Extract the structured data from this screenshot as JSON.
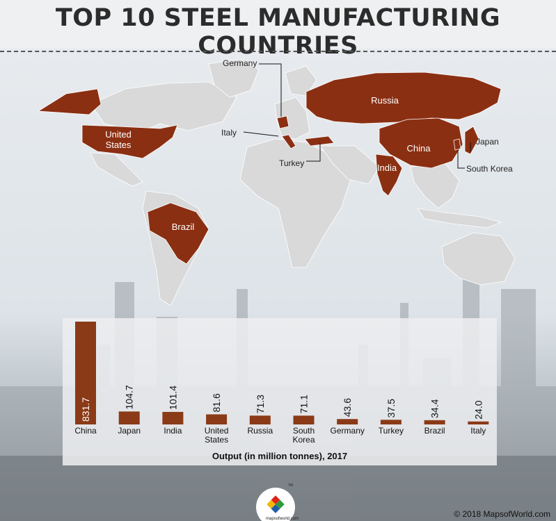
{
  "title": "TOP 10 STEEL MANUFACTURING COUNTRIES",
  "map_labels": {
    "russia": "Russia",
    "united_states": "United States",
    "china": "China",
    "india": "India",
    "brazil": "Brazil",
    "germany": "Germany",
    "italy": "Italy",
    "turkey": "Turkey",
    "japan": "Japan",
    "south_korea": "South Korea"
  },
  "colors": {
    "highlight": "#8b2f12",
    "land": "#d9d9d9",
    "bar": "#8b3a17"
  },
  "chart_data": {
    "type": "bar",
    "title": "Output (in million tonnes), 2017",
    "categories": [
      "China",
      "Japan",
      "India",
      "United States",
      "Russia",
      "South Korea",
      "Germany",
      "Turkey",
      "Brazil",
      "Italy"
    ],
    "values": [
      831.7,
      104.7,
      101.4,
      81.6,
      71.3,
      71.1,
      43.6,
      37.5,
      34.4,
      24.0
    ],
    "value_labels": [
      "831.7",
      "104.7",
      "101.4",
      "81.6",
      "71.3",
      "71.1",
      "43.6",
      "37.5",
      "34.4",
      "24.0"
    ]
  },
  "logo": {
    "text": "mapsofworld.com",
    "mark": "TM"
  },
  "credit": "© 2018 MapsofWorld.com"
}
